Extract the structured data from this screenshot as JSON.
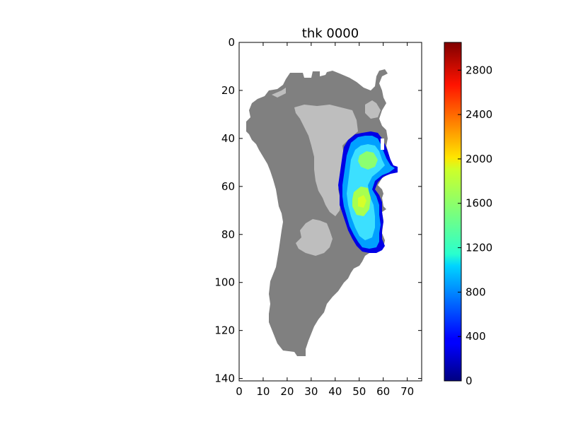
{
  "chart_data": {
    "type": "heatmap",
    "title": "thk 0000",
    "xlabel": "",
    "ylabel": "",
    "xlim": [
      0,
      76
    ],
    "ylim": [
      141,
      0
    ],
    "x_ticks": [
      "0",
      "10",
      "20",
      "30",
      "40",
      "50",
      "60",
      "70"
    ],
    "y_ticks": [
      "0",
      "20",
      "40",
      "60",
      "80",
      "100",
      "120",
      "140"
    ],
    "colorbar": {
      "colormap": "jet",
      "range": [
        0,
        3050
      ],
      "ticks": [
        "0",
        "400",
        "800",
        "1200",
        "1600",
        "2000",
        "2400",
        "2800"
      ]
    },
    "regions": {
      "land_color": "#808080",
      "ice_free_light_color": "#bebebe",
      "ice_thickness_max_estimate": 1900
    }
  }
}
